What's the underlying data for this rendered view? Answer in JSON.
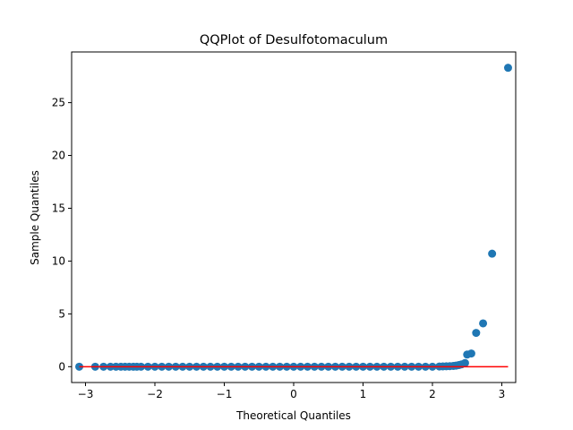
{
  "chart_data": {
    "type": "scatter",
    "title": "QQPlot of Desulfotomaculum",
    "xlabel": "Theoretical Quantiles",
    "ylabel": "Sample Quantiles",
    "xlim": [
      -3.2,
      3.2
    ],
    "ylim": [
      -1.5,
      29.8
    ],
    "xticks": [
      -3,
      -2,
      -1,
      0,
      1,
      2,
      3
    ],
    "yticks": [
      0,
      5,
      10,
      15,
      20,
      25
    ],
    "grid": false,
    "marker_color": "#1f77b4",
    "reference_line": {
      "color": "#ff0000",
      "x": [
        -3.09,
        3.09
      ],
      "y": [
        0,
        0
      ]
    },
    "series": [
      {
        "x": [
          -3.09,
          -2.86,
          -2.74,
          -2.64,
          -2.56,
          -2.49,
          -2.43,
          -2.37,
          -2.31,
          -2.26,
          -2.2,
          -2.1,
          -2.0,
          -1.9,
          -1.8,
          -1.7,
          -1.6,
          -1.5,
          -1.4,
          -1.3,
          -1.2,
          -1.1,
          -1.0,
          -0.9,
          -0.8,
          -0.7,
          -0.6,
          -0.5,
          -0.4,
          -0.3,
          -0.2,
          -0.1,
          0.0,
          0.1,
          0.2,
          0.3,
          0.4,
          0.5,
          0.6,
          0.7,
          0.8,
          0.9,
          1.0,
          1.1,
          1.2,
          1.3,
          1.4,
          1.5,
          1.6,
          1.7,
          1.8,
          1.9,
          2.0,
          2.1,
          2.15,
          2.2,
          2.25,
          2.3,
          2.34,
          2.38,
          2.42,
          2.47,
          2.5,
          2.56,
          2.63,
          2.73,
          2.86,
          3.09
        ],
        "y": [
          0,
          0,
          0,
          0,
          0,
          0,
          0,
          0,
          0,
          0,
          0,
          0,
          0,
          0,
          0,
          0,
          0,
          0,
          0,
          0,
          0,
          0,
          0,
          0,
          0,
          0,
          0,
          0,
          0,
          0,
          0,
          0,
          0,
          0,
          0,
          0,
          0,
          0,
          0,
          0,
          0,
          0,
          0,
          0,
          0,
          0,
          0,
          0,
          0,
          0,
          0,
          0,
          0,
          0.02,
          0.03,
          0.04,
          0.05,
          0.07,
          0.1,
          0.15,
          0.22,
          0.35,
          1.15,
          1.25,
          3.2,
          4.1,
          10.7,
          28.3
        ]
      }
    ]
  }
}
